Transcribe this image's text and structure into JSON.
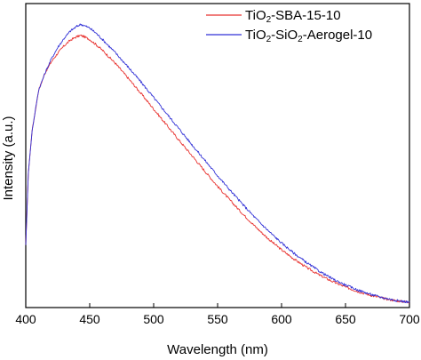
{
  "chart_data": {
    "type": "line",
    "xlabel": "Wavelength (nm)",
    "ylabel": "Intensity (a.u.)",
    "xlim": [
      400,
      700
    ],
    "ylim": [
      0,
      1.0
    ],
    "x_ticks": [
      400,
      450,
      500,
      550,
      600,
      650,
      700
    ],
    "y_ticks_shown": false,
    "grid": false,
    "legend_position": "top-right",
    "series": [
      {
        "name": "TiO₂-SBA-15-10",
        "name_parts": [
          {
            "text": "TiO",
            "sub": false
          },
          {
            "text": "2",
            "sub": true
          },
          {
            "text": "-SBA-15-10",
            "sub": false
          }
        ],
        "color": "#e8322f",
        "x": [
          400,
          402,
          405,
          410,
          415,
          420,
          425,
          430,
          435,
          440,
          443,
          445,
          450,
          455,
          460,
          470,
          480,
          490,
          500,
          510,
          520,
          530,
          540,
          550,
          560,
          570,
          580,
          590,
          600,
          610,
          620,
          630,
          640,
          650,
          660,
          670,
          680,
          690,
          700
        ],
        "values": [
          0.2,
          0.45,
          0.6,
          0.74,
          0.8,
          0.84,
          0.87,
          0.896,
          0.916,
          0.928,
          0.932,
          0.929,
          0.918,
          0.9,
          0.88,
          0.835,
          0.783,
          0.73,
          0.675,
          0.62,
          0.565,
          0.512,
          0.458,
          0.405,
          0.355,
          0.307,
          0.262,
          0.22,
          0.183,
          0.15,
          0.12,
          0.094,
          0.072,
          0.053,
          0.037,
          0.024,
          0.013,
          0.005,
          0.0
        ]
      },
      {
        "name": "TiO₂-SiO₂-Aerogel-10",
        "name_parts": [
          {
            "text": "TiO",
            "sub": false
          },
          {
            "text": "2",
            "sub": true
          },
          {
            "text": "-SiO",
            "sub": false
          },
          {
            "text": "2",
            "sub": true
          },
          {
            "text": "-Aerogel-10",
            "sub": false
          }
        ],
        "color": "#3232d6",
        "x": [
          400,
          402,
          405,
          410,
          415,
          420,
          425,
          430,
          435,
          440,
          443,
          445,
          450,
          455,
          460,
          470,
          480,
          490,
          500,
          510,
          520,
          530,
          540,
          550,
          560,
          570,
          580,
          590,
          600,
          610,
          620,
          630,
          640,
          650,
          660,
          670,
          680,
          690,
          700
        ],
        "values": [
          0.2,
          0.45,
          0.6,
          0.74,
          0.8,
          0.85,
          0.89,
          0.922,
          0.948,
          0.964,
          0.971,
          0.968,
          0.958,
          0.94,
          0.918,
          0.872,
          0.822,
          0.77,
          0.715,
          0.66,
          0.605,
          0.55,
          0.496,
          0.442,
          0.39,
          0.34,
          0.292,
          0.248,
          0.207,
          0.17,
          0.137,
          0.107,
          0.081,
          0.06,
          0.042,
          0.027,
          0.015,
          0.006,
          0.0
        ]
      }
    ]
  }
}
